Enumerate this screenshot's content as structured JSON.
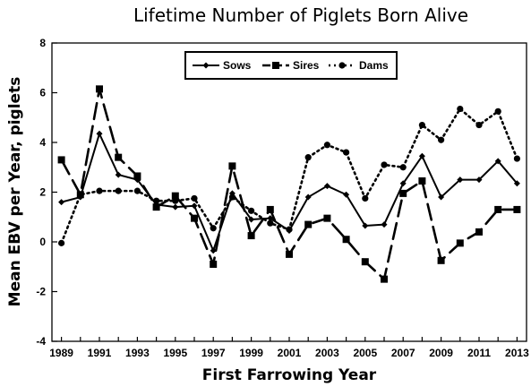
{
  "chart_data": {
    "type": "line",
    "title": "Lifetime Number of Piglets Born Alive",
    "xlabel": "First Farrowing Year",
    "ylabel": "Mean EBV per Year, piglets",
    "x": [
      1989,
      1990,
      1991,
      1992,
      1993,
      1994,
      1995,
      1996,
      1997,
      1998,
      1999,
      2000,
      2001,
      2002,
      2003,
      2004,
      2005,
      2006,
      2007,
      2008,
      2009,
      2010,
      2011,
      2012,
      2013
    ],
    "xticks": [
      "1989",
      "1991",
      "1993",
      "1995",
      "1997",
      "1999",
      "2001",
      "2003",
      "2005",
      "2007",
      "2009",
      "2011",
      "2013"
    ],
    "xlim": [
      1988.5,
      2013.5
    ],
    "ylim": [
      -4,
      8
    ],
    "yticks": [
      "-4",
      "-2",
      "0",
      "2",
      "4",
      "6",
      "8"
    ],
    "grid": false,
    "legend_position": "top-center",
    "series": [
      {
        "name": "Sows",
        "line_style": "solid",
        "marker": "diamond",
        "color": "#000000",
        "values": [
          1.6,
          1.8,
          4.35,
          2.7,
          2.5,
          1.5,
          1.4,
          1.45,
          -0.35,
          1.95,
          0.9,
          0.95,
          0.45,
          1.8,
          2.25,
          1.9,
          0.65,
          0.7,
          2.35,
          3.45,
          1.8,
          2.5,
          2.5,
          3.25,
          2.35
        ]
      },
      {
        "name": "Sires",
        "line_style": "dashed",
        "marker": "square",
        "color": "#000000",
        "values": [
          3.3,
          1.9,
          6.15,
          3.4,
          2.65,
          1.4,
          1.85,
          0.95,
          -0.9,
          3.05,
          0.25,
          1.3,
          -0.5,
          0.7,
          0.95,
          0.1,
          -0.8,
          -1.5,
          1.95,
          2.45,
          -0.75,
          -0.05,
          0.4,
          1.3,
          1.3
        ]
      },
      {
        "name": "Dams",
        "line_style": "dotted",
        "marker": "circle",
        "color": "#000000",
        "values": [
          -0.05,
          1.9,
          2.05,
          2.05,
          2.05,
          1.65,
          1.65,
          1.75,
          0.55,
          1.8,
          1.25,
          0.75,
          0.5,
          3.4,
          3.9,
          3.6,
          1.75,
          3.1,
          3.0,
          4.7,
          4.1,
          5.35,
          4.7,
          5.25,
          3.35
        ]
      }
    ]
  }
}
